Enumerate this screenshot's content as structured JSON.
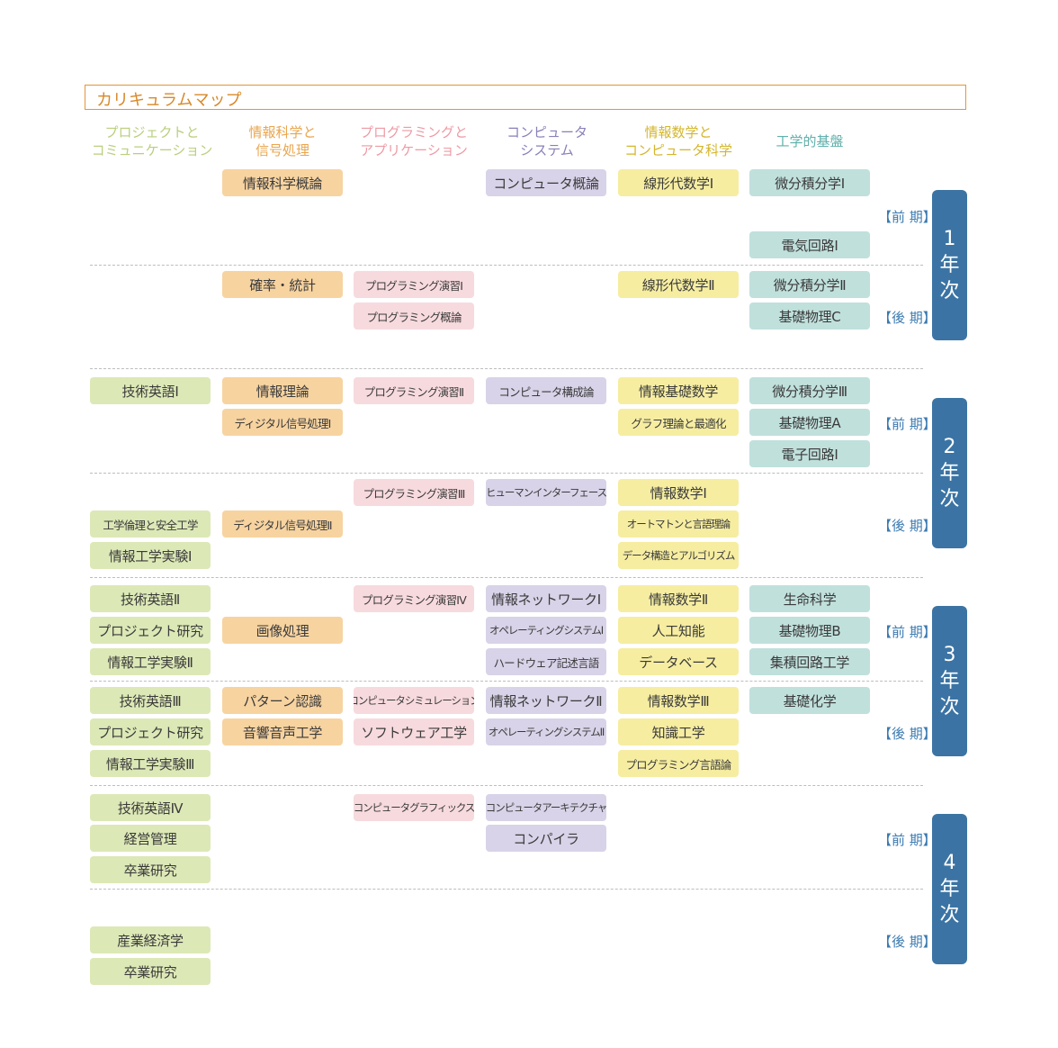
{
  "title": "カリキュラムマップ",
  "colors": {
    "project_comm": "#dce8b6",
    "info_signal": "#f7d3a0",
    "programming": "#f7dade",
    "computer_system": "#d8d3e8",
    "math": "#f6eda1",
    "engineering": "#c0e0dc",
    "badge": "#3b74a4",
    "semester_text": "#3b7ab0",
    "title_border": "#e2963a"
  },
  "columns": [
    {
      "line1": "プロジェクトと",
      "line2": "コミュニケーション",
      "color": "#b9cf7c"
    },
    {
      "line1": "情報科学と",
      "line2": "信号処理",
      "color": "#e9a64f"
    },
    {
      "line1": "プログラミングと",
      "line2": "アプリケーション",
      "color": "#ee9aa4"
    },
    {
      "line1": "コンピュータ",
      "line2": "システム",
      "color": "#8a7fb8"
    },
    {
      "line1": "情報数学と",
      "line2": "コンピュータ科学",
      "color": "#d4b62a"
    },
    {
      "line1": "工学的基盤",
      "line2": "",
      "color": "#5fb0ab"
    }
  ],
  "semester_labels": {
    "y1_first": "【前 期】",
    "y1_second": "【後 期】",
    "y2_first": "【前 期】",
    "y2_second": "【後 期】",
    "y3_first": "【前 期】",
    "y3_second": "【後 期】",
    "y4_first": "【前 期】",
    "y4_second": "【後 期】"
  },
  "years": [
    {
      "num": "1",
      "c1": "年",
      "c2": "次"
    },
    {
      "num": "2",
      "c1": "年",
      "c2": "次"
    },
    {
      "num": "3",
      "c1": "年",
      "c2": "次"
    },
    {
      "num": "4",
      "c1": "年",
      "c2": "次"
    }
  ],
  "courses": {
    "c001": "情報科学概論",
    "c002": "コンピュータ概論",
    "c003": "線形代数学Ⅰ",
    "c004": "微分積分学Ⅰ",
    "c005": "電気回路Ⅰ",
    "c006": "確率・統計",
    "c007": "プログラミング演習Ⅰ",
    "c008": "線形代数学Ⅱ",
    "c009": "微分積分学Ⅱ",
    "c010": "プログラミング概論",
    "c011": "基礎物理C",
    "c012": "技術英語Ⅰ",
    "c013": "情報理論",
    "c014": "プログラミング演習Ⅱ",
    "c015": "コンピュータ構成論",
    "c016": "情報基礎数学",
    "c017": "微分積分学Ⅲ",
    "c018": "ディジタル信号処理Ⅰ",
    "c019": "グラフ理論と最適化",
    "c020": "基礎物理A",
    "c021": "電子回路Ⅰ",
    "c022": "プログラミング演習Ⅲ",
    "c023": "ヒューマンインターフェース",
    "c024": "情報数学Ⅰ",
    "c025": "工学倫理と安全工学",
    "c026": "ディジタル信号処理Ⅱ",
    "c027": "オートマトンと言語理論",
    "c028": "情報工学実験Ⅰ",
    "c029": "データ構造とアルゴリズム",
    "c030": "技術英語Ⅱ",
    "c031": "プログラミング演習Ⅳ",
    "c032": "情報ネットワークⅠ",
    "c033": "情報数学Ⅱ",
    "c034": "生命科学",
    "c035": "プロジェクト研究",
    "c036": "画像処理",
    "c037": "オペレーティングシステムⅠ",
    "c038": "人工知能",
    "c039": "基礎物理B",
    "c040": "情報工学実験Ⅱ",
    "c041": "ハードウェア記述言語",
    "c042": "データベース",
    "c043": "集積回路工学",
    "c044": "技術英語Ⅲ",
    "c045": "パターン認識",
    "c046": "コンピュータシミュレーション",
    "c047": "情報ネットワークⅡ",
    "c048": "情報数学Ⅲ",
    "c049": "基礎化学",
    "c050": "プロジェクト研究",
    "c051": "音響音声工学",
    "c052": "ソフトウェア工学",
    "c053": "オペレーティングシステムⅡ",
    "c054": "知識工学",
    "c055": "情報工学実験Ⅲ",
    "c056": "プログラミング言語論",
    "c057": "技術英語Ⅳ",
    "c058": "コンピュータグラフィックス",
    "c059": "コンピュータアーキテクチャ",
    "c060": "経営管理",
    "c061": "コンパイラ",
    "c062": "卒業研究",
    "c063": "産業経済学",
    "c064": "卒業研究"
  }
}
